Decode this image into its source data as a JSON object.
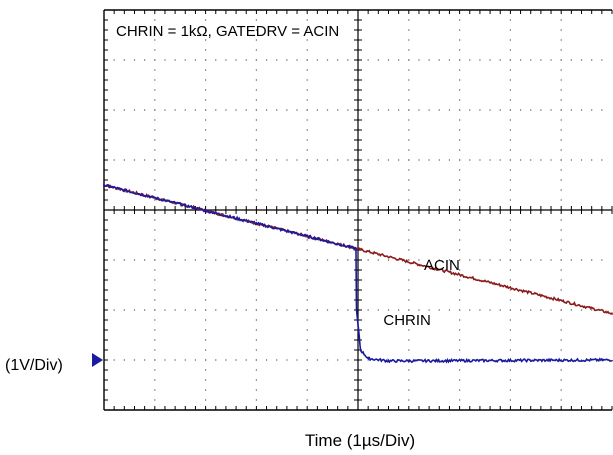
{
  "chart_data": {
    "type": "line",
    "title": "CHRIN = 1kΩ, GATEDRV = ACIN",
    "xlabel": "Time (1µs/Div)",
    "ylabel": "(1V/Div)",
    "x_divisions": 10,
    "y_divisions": 8,
    "xlim": [
      0,
      10
    ],
    "ylim": [
      0,
      8
    ],
    "grid": true,
    "series": [
      {
        "name": "ACIN",
        "color": "#8b1a1a",
        "label_at": [
          6.3,
          2.8
        ],
        "points": [
          [
            0,
            4.5
          ],
          [
            5,
            3.22
          ],
          [
            10,
            1.93
          ]
        ]
      },
      {
        "name": "CHRIN",
        "color": "#1a1a9e",
        "label_at": [
          5.5,
          1.7
        ],
        "points": [
          [
            0,
            4.5
          ],
          [
            4.96,
            3.23
          ],
          [
            4.97,
            2.0
          ],
          [
            5.05,
            1.2
          ],
          [
            5.2,
            1.03
          ],
          [
            5.6,
            0.98
          ],
          [
            10,
            1.0
          ]
        ]
      }
    ],
    "ground_marker_level": 1.0
  }
}
